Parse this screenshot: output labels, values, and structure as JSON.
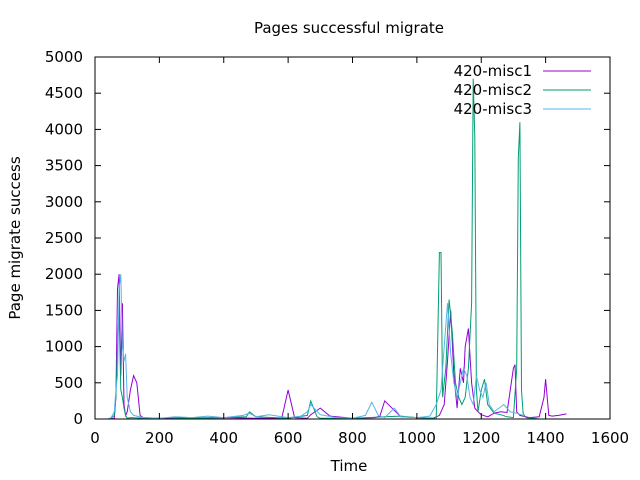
{
  "chart_data": {
    "type": "line",
    "title": "Pages successful migrate",
    "xlabel": "Time",
    "ylabel": "Page migrate success",
    "xlim": [
      0,
      1600
    ],
    "ylim": [
      0,
      5000
    ],
    "xticks": [
      0,
      200,
      400,
      600,
      800,
      1000,
      1200,
      1400,
      1600
    ],
    "yticks": [
      0,
      500,
      1000,
      1500,
      2000,
      2500,
      3000,
      3500,
      4000,
      4500,
      5000
    ],
    "grid": false,
    "legend": "top-right",
    "series": [
      {
        "name": "420-misc1",
        "color": "#9400d3",
        "x": [
          50,
          60,
          65,
          70,
          75,
          80,
          85,
          90,
          95,
          100,
          110,
          120,
          130,
          140,
          150,
          200,
          300,
          400,
          500,
          580,
          600,
          620,
          660,
          670,
          700,
          730,
          800,
          870,
          885,
          900,
          950,
          1000,
          1050,
          1070,
          1085,
          1095,
          1105,
          1115,
          1125,
          1135,
          1145,
          1150,
          1160,
          1170,
          1180,
          1190,
          1200,
          1220,
          1240,
          1260,
          1280,
          1300,
          1305,
          1310,
          1320,
          1330,
          1350,
          1380,
          1395,
          1400,
          1410,
          1420,
          1440,
          1465
        ],
        "y": [
          0,
          10,
          300,
          1800,
          2000,
          600,
          1600,
          200,
          50,
          100,
          400,
          600,
          500,
          50,
          20,
          10,
          15,
          20,
          10,
          10,
          400,
          20,
          10,
          60,
          150,
          40,
          10,
          20,
          40,
          250,
          30,
          20,
          10,
          50,
          200,
          800,
          1500,
          600,
          150,
          700,
          500,
          1000,
          1250,
          500,
          150,
          100,
          60,
          30,
          80,
          100,
          90,
          700,
          750,
          100,
          50,
          40,
          20,
          30,
          300,
          550,
          50,
          40,
          50,
          70
        ]
      },
      {
        "name": "420-misc2",
        "color": "#009e73",
        "x": [
          40,
          50,
          60,
          65,
          70,
          75,
          80,
          85,
          90,
          95,
          100,
          110,
          150,
          200,
          300,
          400,
          470,
          480,
          500,
          600,
          660,
          670,
          690,
          700,
          800,
          850,
          900,
          950,
          1000,
          1050,
          1060,
          1070,
          1075,
          1080,
          1090,
          1100,
          1110,
          1120,
          1130,
          1140,
          1150,
          1160,
          1170,
          1175,
          1180,
          1185,
          1190,
          1200,
          1210,
          1220,
          1240,
          1260,
          1280,
          1300,
          1310,
          1315,
          1320,
          1325,
          1330,
          1335,
          1340,
          1360,
          1380
        ],
        "y": [
          0,
          10,
          50,
          300,
          1000,
          1500,
          400,
          300,
          150,
          50,
          10,
          20,
          10,
          0,
          10,
          20,
          30,
          100,
          30,
          10,
          50,
          250,
          30,
          10,
          10,
          20,
          30,
          40,
          20,
          10,
          0,
          2300,
          2300,
          300,
          700,
          1650,
          1200,
          500,
          300,
          200,
          300,
          700,
          1600,
          4700,
          3900,
          400,
          100,
          400,
          550,
          200,
          80,
          60,
          30,
          20,
          700,
          3600,
          4100,
          400,
          80,
          40,
          20,
          10,
          0
        ]
      },
      {
        "name": "420-misc3",
        "color": "#56b4e9",
        "x": [
          40,
          50,
          60,
          65,
          70,
          75,
          80,
          85,
          90,
          95,
          100,
          110,
          120,
          150,
          200,
          250,
          300,
          350,
          400,
          460,
          480,
          500,
          540,
          600,
          640,
          660,
          670,
          700,
          750,
          800,
          840,
          860,
          880,
          900,
          930,
          950,
          1000,
          1040,
          1060,
          1075,
          1085,
          1095,
          1105,
          1115,
          1125,
          1135,
          1145,
          1155,
          1165,
          1175,
          1185,
          1195,
          1205,
          1215,
          1225,
          1240,
          1255,
          1270,
          1290,
          1310,
          1330
        ],
        "y": [
          0,
          20,
          100,
          400,
          600,
          1800,
          2000,
          1000,
          800,
          900,
          300,
          100,
          50,
          20,
          10,
          30,
          20,
          40,
          20,
          50,
          80,
          30,
          60,
          20,
          40,
          100,
          200,
          60,
          20,
          10,
          50,
          230,
          50,
          20,
          150,
          30,
          20,
          40,
          200,
          400,
          1000,
          1600,
          900,
          500,
          300,
          500,
          700,
          600,
          300,
          200,
          600,
          400,
          300,
          500,
          200,
          100,
          150,
          200,
          100,
          80,
          50
        ]
      }
    ]
  }
}
